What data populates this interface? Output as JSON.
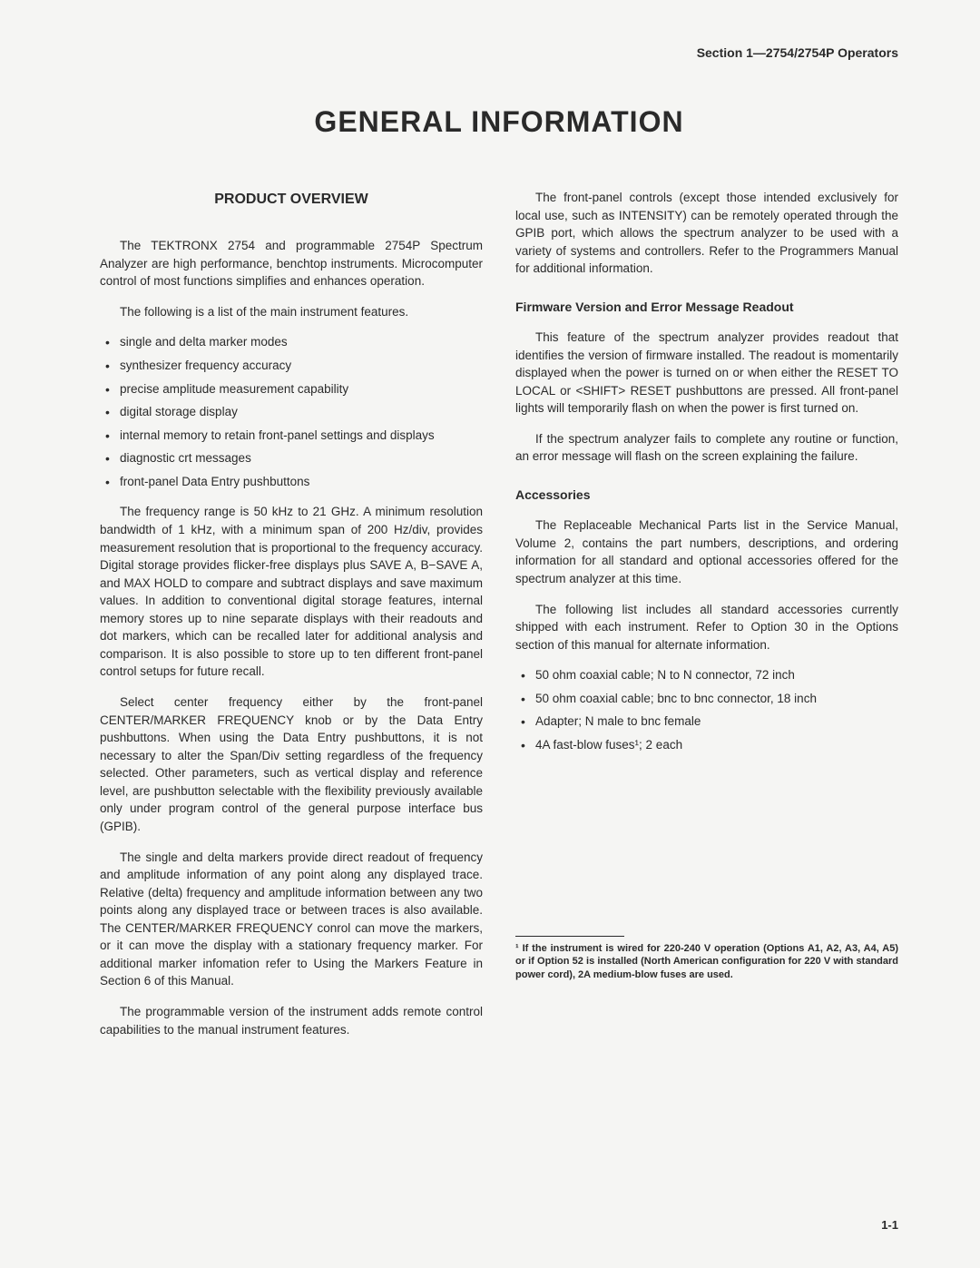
{
  "section_header": "Section 1—2754/2754P Operators",
  "main_title": "GENERAL INFORMATION",
  "left": {
    "subhead": "PRODUCT OVERVIEW",
    "p1": "The TEKTRONX 2754 and programmable 2754P Spectrum Analyzer are high performance, benchtop instruments. Microcomputer control of most functions simplifies and enhances operation.",
    "p2": "The following is a list of the main instrument features.",
    "features": [
      "single and delta marker modes",
      "synthesizer frequency accuracy",
      "precise amplitude measurement capability",
      "digital storage display",
      "internal memory to retain front-panel settings and displays",
      "diagnostic crt messages",
      "front-panel Data Entry pushbuttons"
    ],
    "p3": "The frequency range is 50 kHz to 21 GHz. A minimum resolution bandwidth of 1 kHz, with a minimum span of 200 Hz/div, provides measurement resolution that is proportional to the frequency accuracy. Digital storage provides flicker-free displays plus SAVE A, B−SAVE A, and MAX HOLD to compare and subtract displays and save maximum values. In addition to conventional digital storage features, internal memory stores up to nine separate displays with their readouts and dot markers, which can be recalled later for additional analysis and comparison. It is also possible to store up to ten different front-panel control setups for future recall.",
    "p4": "Select center frequency either by the front-panel CENTER/MARKER FREQUENCY knob or by the Data Entry pushbuttons. When using the Data Entry pushbuttons, it is not necessary to alter the Span/Div setting regardless of the frequency selected. Other parameters, such as vertical display and reference level, are pushbutton selectable with the flexibility previously available only under program control of the general purpose interface bus (GPIB).",
    "p5": "The single and delta markers provide direct readout of frequency and amplitude information of any point along any displayed trace. Relative (delta) frequency and amplitude information between any two points along any displayed trace or between traces is also available. The CENTER/MARKER FREQUENCY conrol can move the markers, or it can move the display with a stationary frequency marker. For additional marker infomation refer to Using the Markers Feature in Section 6 of this Manual.",
    "p6": "The programmable version of the instrument adds remote control capabilities to the manual instrument features."
  },
  "right": {
    "r1": "The front-panel controls (except those intended exclusively for local use, such as INTENSITY) can be remotely operated through the GPIB port, which allows the spectrum analyzer to be used with a variety of systems and controllers. Refer to the Programmers Manual for additional information.",
    "h1": "Firmware Version and Error Message Readout",
    "r2": "This feature of the spectrum analyzer provides readout that identifies the version of firmware installed. The readout is momentarily displayed when the power is turned on or when either the RESET TO LOCAL or <SHIFT> RESET pushbuttons are pressed. All front-panel lights will temporarily flash on when the power is first turned on.",
    "r3": "If the spectrum analyzer fails to complete any routine or function, an error message will flash on the screen explaining the failure.",
    "h2": "Accessories",
    "r4": "The Replaceable Mechanical Parts list in the Service Manual, Volume 2, contains the part numbers, descriptions, and ordering information for all standard and optional accessories offered for the spectrum analyzer at this time.",
    "r5": "The following list includes all standard accessories currently shipped with each instrument. Refer to Option 30 in the Options section of this manual for alternate information.",
    "accessories": [
      "50 ohm coaxial cable; N to N connector, 72 inch",
      "50 ohm coaxial cable; bnc to bnc connector, 18 inch",
      "Adapter; N male to bnc female",
      "4A fast-blow fuses¹; 2 each"
    ],
    "footnote": "¹ If the instrument is wired for 220-240 V operation (Options A1, A2, A3, A4, A5) or if Option 52 is installed (North American configuration for 220 V with standard power cord), 2A medium-blow fuses are used."
  },
  "pagenum": "1-1"
}
